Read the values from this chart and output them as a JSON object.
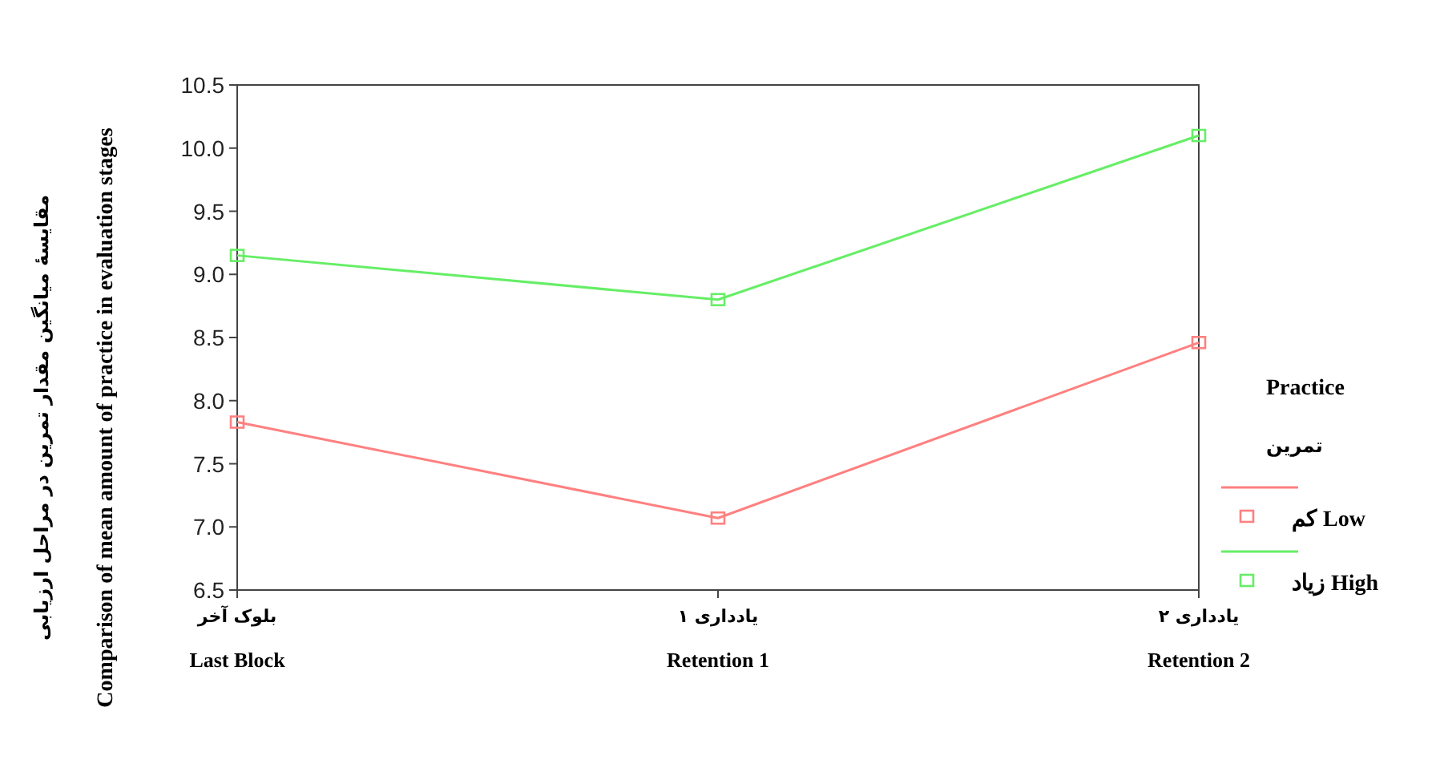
{
  "chart_data": {
    "type": "line",
    "ylabel": "مقایسهٔ میانگین مقدار تمرین در مراحل ارزیابی\nComparison of mean amount of practice in evaluation stages",
    "categories": [
      "بلوک آخر\nLast Block",
      "یادداری ۱\nRetention 1",
      "یادداری ۲\nRetention 2"
    ],
    "series": [
      {
        "name": "کم Low",
        "color": "#ff8080",
        "values": [
          7.83,
          7.07,
          8.46
        ]
      },
      {
        "name": "زیاد High",
        "color": "#66ee66",
        "values": [
          9.15,
          8.8,
          10.1
        ]
      }
    ],
    "ylim": [
      6.5,
      10.5
    ],
    "yticks": [
      6.5,
      {
        "value": 7,
        "label": "7.0"
      },
      7.5,
      {
        "value": 8,
        "label": "8.0"
      },
      8.5,
      {
        "value": 9,
        "label": "9.0"
      },
      9.5,
      {
        "value": 10,
        "label": "10.0"
      },
      10.5
    ],
    "legend_title": "Practice\nتمرین",
    "legend": "right",
    "marker": "square"
  }
}
